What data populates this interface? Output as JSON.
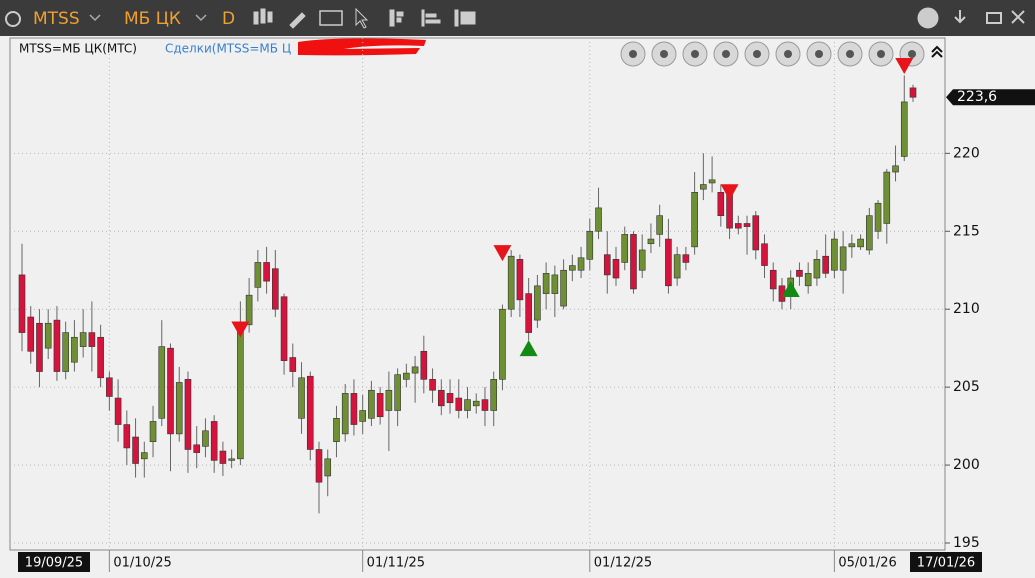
{
  "toolbar": {
    "ticker": "MTSS",
    "board": "МБ ЦК",
    "interval": "D"
  },
  "chart_data": {
    "type": "candlestick",
    "series_label": "MTSS=МБ ЦК(MTC)",
    "trades_label": "Сделки(MTSS=МБ Ц",
    "up_color": "#6f8f35",
    "down_color": "#d4143c",
    "sell_color": "#e8141c",
    "buy_color": "#138a13",
    "grid": true,
    "ylim": [
      195,
      227.4
    ],
    "yticks": [
      195,
      200,
      205,
      210,
      215,
      220
    ],
    "last_price": {
      "value": 223.6,
      "label": "223,6"
    },
    "categories": [
      "19/09/25",
      null,
      null,
      null,
      null,
      null,
      null,
      null,
      null,
      null,
      "01/10/25",
      null,
      null,
      null,
      null,
      null,
      null,
      null,
      null,
      null,
      null,
      null,
      null,
      null,
      null,
      null,
      null,
      null,
      null,
      null,
      null,
      null,
      null,
      null,
      null,
      null,
      null,
      null,
      null,
      "01/11/25",
      null,
      null,
      null,
      null,
      null,
      null,
      null,
      null,
      null,
      null,
      null,
      null,
      null,
      null,
      null,
      null,
      null,
      null,
      null,
      null,
      null,
      null,
      null,
      null,
      null,
      "01/12/25",
      null,
      null,
      null,
      null,
      null,
      null,
      null,
      null,
      null,
      null,
      null,
      null,
      null,
      null,
      null,
      null,
      null,
      null,
      null,
      null,
      null,
      null,
      null,
      null,
      null,
      null,
      null,
      "05/01/26",
      null,
      null,
      null,
      null,
      null,
      null,
      null,
      null,
      "17/01/26"
    ],
    "open": [
      212.2,
      209.5,
      209.1,
      207.5,
      209.3,
      206.0,
      206.6,
      207.6,
      208.5,
      208.2,
      205.6,
      204.3,
      202.6,
      201.8,
      200.4,
      201.5,
      203.0,
      207.5,
      202.0,
      205.5,
      201.3,
      201.2,
      202.8,
      200.9,
      200.3,
      200.4,
      209.0,
      211.4,
      213.0,
      212.6,
      210.8,
      206.9,
      203.0,
      205.7,
      201.0,
      199.3,
      201.5,
      202.0,
      204.6,
      202.8,
      203.0,
      204.6,
      203.5,
      203.5,
      205.5,
      205.9,
      207.3,
      205.5,
      204.8,
      204.6,
      204.3,
      203.5,
      203.8,
      204.2,
      203.5,
      205.5,
      210.0,
      213.2,
      211.0,
      209.3,
      211.0,
      211.0,
      210.2,
      212.5,
      212.5,
      213.2,
      215.0,
      213.5,
      213.2,
      213.0,
      214.8,
      212.5,
      214.2,
      214.8,
      214.5,
      212.0,
      213.5,
      214.0,
      217.7,
      218.1,
      217.5,
      217.5,
      215.5,
      215.5,
      216.0,
      214.2,
      212.5,
      211.5,
      211.0,
      212.5,
      211.5,
      212.0,
      213.4,
      212.5,
      212.5,
      214.0,
      214.0,
      213.8,
      215.0,
      215.5,
      218.8,
      219.8,
      224.2
    ],
    "high": [
      214.2,
      210.2,
      210.0,
      210.0,
      210.2,
      209.2,
      209.3,
      210.0,
      210.5,
      209.0,
      206.0,
      205.5,
      203.5,
      203.0,
      201.5,
      203.8,
      209.3,
      207.8,
      206.3,
      206.0,
      202.5,
      203.0,
      203.2,
      201.5,
      201.0,
      210.5,
      212.0,
      213.8,
      214.0,
      213.8,
      211.0,
      207.8,
      206.6,
      206.0,
      201.5,
      201.0,
      203.8,
      205.2,
      205.5,
      204.5,
      205.4,
      205.0,
      206.0,
      206.2,
      206.5,
      207.0,
      208.3,
      206.2,
      205.5,
      205.5,
      205.5,
      205.0,
      204.6,
      205.0,
      206.0,
      210.3,
      213.8,
      213.5,
      212.0,
      212.2,
      213.0,
      212.8,
      213.2,
      213.5,
      214.0,
      215.8,
      217.8,
      215.0,
      214.0,
      215.3,
      215.0,
      214.8,
      215.5,
      216.7,
      215.8,
      214.0,
      214.0,
      218.8,
      220.0,
      219.8,
      218.0,
      217.8,
      216.0,
      216.0,
      216.3,
      214.8,
      213.0,
      212.0,
      212.5,
      213.0,
      213.0,
      213.8,
      214.8,
      215.0,
      215.0,
      214.8,
      214.8,
      216.5,
      217.0,
      219.0,
      220.5,
      225.0,
      224.4
    ],
    "low": [
      207.3,
      206.5,
      205.0,
      206.8,
      205.4,
      205.5,
      206.0,
      206.9,
      206.0,
      205.0,
      203.5,
      201.5,
      200.0,
      199.2,
      199.2,
      200.5,
      202.5,
      199.6,
      201.5,
      199.5,
      199.8,
      200.5,
      199.5,
      199.3,
      199.8,
      200.0,
      208.5,
      210.5,
      211.0,
      209.5,
      205.8,
      205.0,
      202.0,
      200.3,
      196.9,
      198.0,
      200.5,
      201.5,
      201.9,
      202.0,
      202.5,
      202.6,
      200.9,
      202.5,
      205.0,
      204.0,
      204.6,
      204.0,
      203.2,
      203.3,
      203.0,
      203.0,
      203.3,
      202.5,
      202.5,
      204.8,
      209.5,
      209.5,
      208.0,
      208.8,
      210.0,
      209.5,
      210.0,
      211.8,
      212.0,
      212.5,
      214.5,
      211.0,
      211.5,
      212.5,
      211.0,
      212.0,
      213.6,
      214.0,
      211.0,
      211.5,
      212.5,
      213.5,
      217.0,
      217.5,
      215.3,
      214.5,
      214.8,
      213.5,
      213.2,
      212.0,
      210.5,
      210.0,
      210.0,
      211.5,
      211.0,
      211.5,
      212.0,
      212.0,
      211.0,
      213.3,
      213.8,
      213.5,
      214.5,
      214.2,
      218.2,
      219.5,
      223.3
    ],
    "close": [
      208.5,
      207.3,
      206.0,
      209.1,
      206.0,
      208.5,
      208.2,
      208.5,
      207.6,
      205.6,
      204.4,
      202.6,
      201.1,
      200.1,
      200.8,
      202.8,
      207.6,
      202.0,
      205.3,
      201.0,
      200.8,
      202.2,
      200.3,
      200.1,
      200.4,
      209.0,
      210.9,
      213.0,
      211.8,
      210.0,
      206.7,
      206.0,
      205.6,
      201.0,
      198.9,
      200.4,
      203.0,
      204.6,
      202.6,
      203.5,
      204.8,
      203.1,
      204.8,
      205.8,
      205.9,
      206.3,
      205.5,
      204.8,
      203.8,
      204.0,
      203.5,
      204.2,
      204.1,
      203.5,
      205.5,
      210.0,
      213.4,
      210.6,
      208.5,
      211.5,
      212.3,
      212.2,
      212.5,
      212.8,
      213.3,
      215.0,
      216.5,
      212.2,
      212.0,
      214.8,
      211.3,
      213.8,
      214.5,
      216.0,
      211.5,
      213.5,
      213.0,
      217.5,
      218.0,
      218.3,
      216.0,
      215.2,
      215.2,
      215.3,
      213.8,
      212.8,
      211.3,
      210.5,
      212.0,
      212.1,
      212.3,
      213.2,
      212.3,
      214.5,
      214.0,
      214.2,
      214.5,
      216.0,
      216.8,
      218.8,
      219.2,
      223.3,
      223.6
    ],
    "sell_signals": [
      null,
      null,
      null,
      null,
      null,
      null,
      null,
      null,
      null,
      null,
      null,
      null,
      null,
      null,
      null,
      null,
      null,
      null,
      null,
      null,
      null,
      null,
      null,
      null,
      null,
      208.7,
      null,
      null,
      null,
      null,
      null,
      null,
      null,
      null,
      null,
      null,
      null,
      null,
      null,
      null,
      null,
      null,
      null,
      null,
      null,
      null,
      null,
      null,
      null,
      null,
      null,
      null,
      null,
      null,
      null,
      213.6,
      null,
      null,
      null,
      null,
      null,
      null,
      null,
      null,
      null,
      null,
      null,
      null,
      null,
      null,
      null,
      null,
      null,
      null,
      null,
      null,
      null,
      null,
      null,
      null,
      null,
      217.5,
      null,
      null,
      null,
      null,
      null,
      null,
      null,
      null,
      null,
      null,
      null,
      null,
      null,
      null,
      null,
      null,
      null,
      null,
      null,
      225.6,
      null
    ],
    "buy_signals": [
      null,
      null,
      null,
      null,
      null,
      null,
      null,
      null,
      null,
      null,
      null,
      null,
      null,
      null,
      null,
      null,
      null,
      null,
      null,
      null,
      null,
      null,
      null,
      null,
      null,
      null,
      null,
      null,
      null,
      null,
      null,
      null,
      null,
      null,
      null,
      null,
      null,
      null,
      null,
      null,
      null,
      null,
      null,
      null,
      null,
      null,
      null,
      null,
      null,
      null,
      null,
      null,
      null,
      null,
      null,
      null,
      null,
      null,
      207.5,
      null,
      null,
      null,
      null,
      null,
      null,
      null,
      null,
      null,
      null,
      null,
      null,
      null,
      null,
      null,
      null,
      null,
      null,
      null,
      null,
      null,
      null,
      null,
      null,
      null,
      null,
      null,
      null,
      null,
      211.3,
      null,
      null,
      null,
      null,
      null,
      null,
      null,
      null,
      null,
      null,
      null,
      null,
      null,
      null
    ]
  }
}
